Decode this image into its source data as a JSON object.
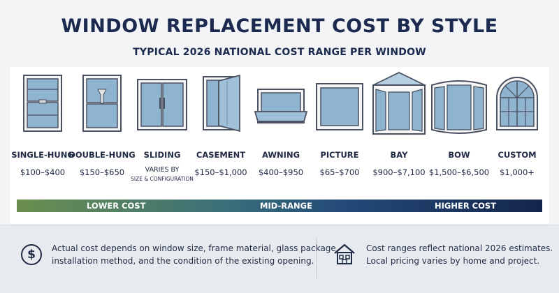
{
  "header": {
    "title": "WINDOW REPLACEMENT COST BY STYLE",
    "subtitle": "TYPICAL 2026 NATIONAL COST RANGE PER WINDOW"
  },
  "styles": [
    {
      "name": "SINGLE-HUNG",
      "price": "$100–$400",
      "icon": "single-hung-window-icon"
    },
    {
      "name": "DOUBLE-HUNG",
      "price": "$150–$650",
      "icon": "double-hung-window-icon"
    },
    {
      "name": "SLIDING",
      "price_line1": "VARIES BY",
      "price_line2": "SIZE & CONFIGURATION",
      "icon": "sliding-window-icon"
    },
    {
      "name": "CASEMENT",
      "price": "$150–$1,000",
      "icon": "casement-window-icon"
    },
    {
      "name": "AWNING",
      "price": "$400–$950",
      "icon": "awning-window-icon"
    },
    {
      "name": "PICTURE",
      "price": "$65–$700",
      "icon": "picture-window-icon"
    },
    {
      "name": "BAY",
      "price": "$900–$7,100",
      "icon": "bay-window-icon"
    },
    {
      "name": "BOW",
      "price": "$1,500–$6,500",
      "icon": "bow-window-icon"
    },
    {
      "name": "CUSTOM",
      "price": "$1,000+",
      "icon": "custom-arched-window-icon"
    }
  ],
  "cost_scale": {
    "low": "LOWER COST",
    "mid": "MID-RANGE",
    "high": "HIGHER COST",
    "colors": {
      "low": "#6b8f4e",
      "mid": "#234a78",
      "high": "#14254a"
    }
  },
  "footer": {
    "note_left_1": "Actual cost depends on window size, frame material, glass package,",
    "note_left_2": "installation method, and the condition of the existing opening.",
    "note_right_1": "Cost ranges reflect national 2026 estimates.",
    "note_right_2": "Local pricing varies by home and project.",
    "left_icon": "dollar-icon",
    "right_icon": "house-icon"
  }
}
